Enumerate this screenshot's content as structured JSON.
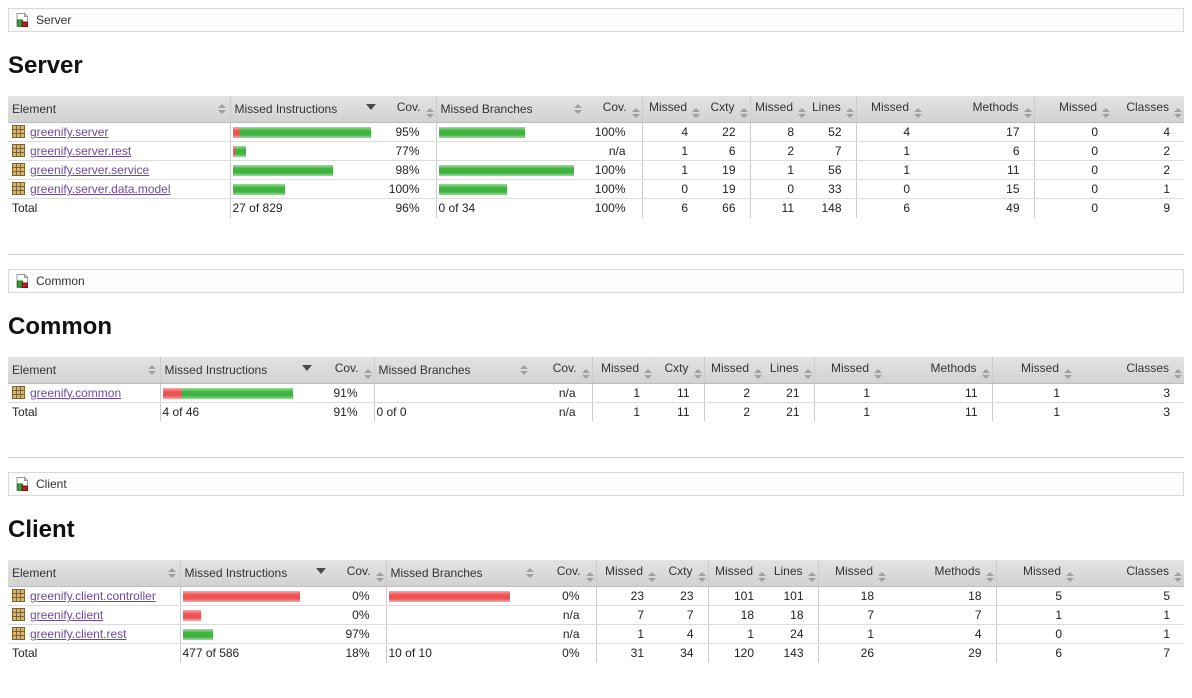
{
  "colors": {
    "link": "#6b4aa3",
    "bar_green": "#3fb23f",
    "bar_red": "#ee5252",
    "header_background": "#d8d8d8"
  },
  "columns": [
    {
      "label": "Element",
      "sort": "both"
    },
    {
      "label": "Missed Instructions",
      "sort": "desc"
    },
    {
      "label": "Cov.",
      "sort": "both"
    },
    {
      "label": "Missed Branches",
      "sort": "both"
    },
    {
      "label": "Cov.",
      "sort": "both"
    },
    {
      "label": "Missed",
      "sort": "both"
    },
    {
      "label": "Cxty",
      "sort": "both"
    },
    {
      "label": "Missed",
      "sort": "both"
    },
    {
      "label": "Lines",
      "sort": "both"
    },
    {
      "label": "Missed",
      "sort": "both"
    },
    {
      "label": "Methods",
      "sort": "both"
    },
    {
      "label": "Missed",
      "sort": "both"
    },
    {
      "label": "Classes",
      "sort": "both"
    }
  ],
  "sections": [
    {
      "breadcrumb": "Server",
      "heading": "Server",
      "rows": [
        {
          "name": "greenify.server",
          "instr_bar": {
            "red": 6,
            "green": 132
          },
          "instr_cov": "95%",
          "branch_bar": {
            "red": 0,
            "green": 86
          },
          "branch_cov": "100%",
          "values": [
            "4",
            "22",
            "8",
            "52",
            "4",
            "17",
            "0",
            "4"
          ]
        },
        {
          "name": "greenify.server.rest",
          "instr_bar": {
            "red": 3,
            "green": 10
          },
          "instr_cov": "77%",
          "branch_bar": {
            "red": 0,
            "green": 0
          },
          "branch_cov": "n/a",
          "values": [
            "1",
            "6",
            "2",
            "7",
            "1",
            "6",
            "0",
            "2"
          ]
        },
        {
          "name": "greenify.server.service",
          "instr_bar": {
            "red": 0,
            "green": 100
          },
          "instr_cov": "98%",
          "branch_bar": {
            "red": 0,
            "green": 135
          },
          "branch_cov": "100%",
          "values": [
            "1",
            "19",
            "1",
            "56",
            "1",
            "11",
            "0",
            "2"
          ]
        },
        {
          "name": "greenify.server.data.model",
          "instr_bar": {
            "red": 0,
            "green": 52
          },
          "instr_cov": "100%",
          "branch_bar": {
            "red": 0,
            "green": 68
          },
          "branch_cov": "100%",
          "values": [
            "0",
            "19",
            "0",
            "33",
            "0",
            "15",
            "0",
            "1"
          ]
        }
      ],
      "total": {
        "label": "Total",
        "instr": "27 of 829",
        "instr_cov": "96%",
        "branch": "0 of 34",
        "branch_cov": "100%",
        "values": [
          "6",
          "66",
          "11",
          "148",
          "6",
          "49",
          "0",
          "9"
        ]
      }
    },
    {
      "breadcrumb": "Common",
      "heading": "Common",
      "rows": [
        {
          "name": "greenify.common",
          "instr_bar": {
            "red": 18,
            "green": 112
          },
          "instr_cov": "91%",
          "branch_bar": {
            "red": 0,
            "green": 0
          },
          "branch_cov": "n/a",
          "values": [
            "1",
            "11",
            "2",
            "21",
            "1",
            "11",
            "1",
            "3"
          ]
        }
      ],
      "total": {
        "label": "Total",
        "instr": "4 of 46",
        "instr_cov": "91%",
        "branch": "0 of 0",
        "branch_cov": "n/a",
        "values": [
          "1",
          "11",
          "2",
          "21",
          "1",
          "11",
          "1",
          "3"
        ]
      }
    },
    {
      "breadcrumb": "Client",
      "heading": "Client",
      "rows": [
        {
          "name": "greenify.client.controller",
          "instr_bar": {
            "red": 117,
            "green": 0
          },
          "instr_cov": "0%",
          "branch_bar": {
            "red": 121,
            "green": 0
          },
          "branch_cov": "0%",
          "values": [
            "23",
            "23",
            "101",
            "101",
            "18",
            "18",
            "5",
            "5"
          ]
        },
        {
          "name": "greenify.client",
          "instr_bar": {
            "red": 18,
            "green": 0
          },
          "instr_cov": "0%",
          "branch_bar": {
            "red": 0,
            "green": 0
          },
          "branch_cov": "n/a",
          "values": [
            "7",
            "7",
            "18",
            "18",
            "7",
            "7",
            "1",
            "1"
          ]
        },
        {
          "name": "greenify.client.rest",
          "instr_bar": {
            "red": 0,
            "green": 30
          },
          "instr_cov": "97%",
          "branch_bar": {
            "red": 0,
            "green": 0
          },
          "branch_cov": "n/a",
          "values": [
            "1",
            "4",
            "1",
            "24",
            "1",
            "4",
            "0",
            "1"
          ]
        }
      ],
      "total": {
        "label": "Total",
        "instr": "477 of 586",
        "instr_cov": "18%",
        "branch": "10 of 10",
        "branch_cov": "0%",
        "values": [
          "31",
          "34",
          "120",
          "143",
          "26",
          "29",
          "6",
          "7"
        ]
      }
    }
  ]
}
